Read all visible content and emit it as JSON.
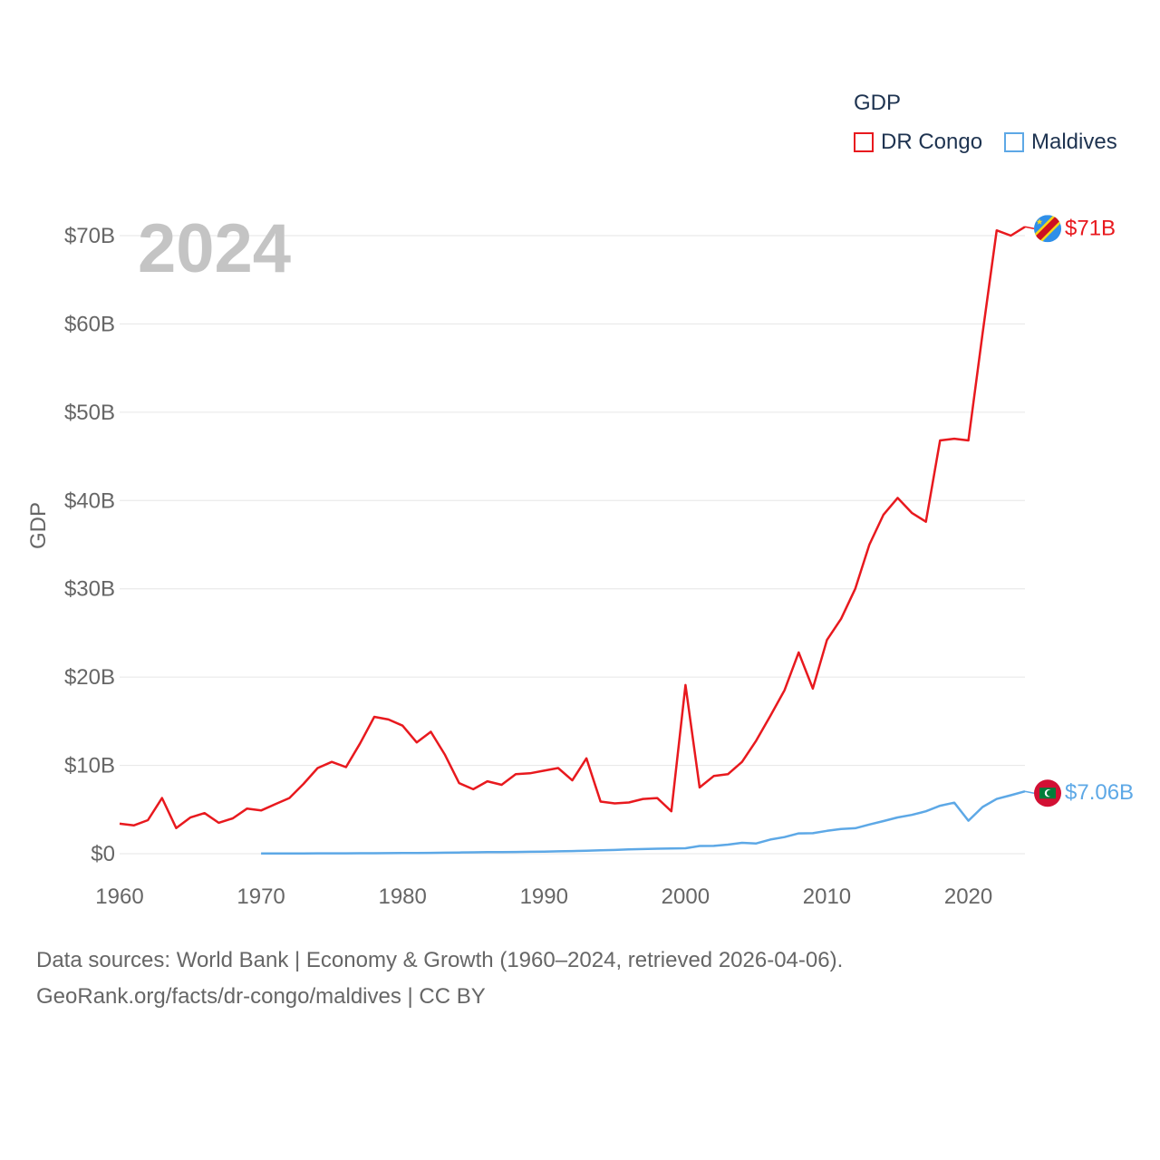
{
  "chart_data": {
    "type": "line",
    "big_year_label": "2024",
    "ylabel": "GDP",
    "xlabel": "",
    "xlim": [
      1960,
      2024
    ],
    "ylim": [
      0,
      70
    ],
    "y_unit": "billion USD",
    "y_ticks": [
      0,
      10,
      20,
      30,
      40,
      50,
      60,
      70
    ],
    "y_tick_labels": [
      "$0",
      "$10B",
      "$20B",
      "$30B",
      "$40B",
      "$50B",
      "$60B",
      "$70B"
    ],
    "x_ticks": [
      1960,
      1970,
      1980,
      1990,
      2000,
      2010,
      2020
    ],
    "x_tick_labels": [
      "1960",
      "1970",
      "1980",
      "1990",
      "2000",
      "2010",
      "2020"
    ],
    "grid": true,
    "legend": {
      "title": "GDP",
      "placement": "top-right"
    },
    "series": [
      {
        "name": "DR Congo",
        "color": "#e8191e",
        "flag_icon": "dr-congo-flag-icon",
        "end_label": "$71B",
        "x": [
          1960,
          1961,
          1962,
          1963,
          1964,
          1965,
          1966,
          1967,
          1968,
          1969,
          1970,
          1971,
          1972,
          1973,
          1974,
          1975,
          1976,
          1977,
          1978,
          1979,
          1980,
          1981,
          1982,
          1983,
          1984,
          1985,
          1986,
          1987,
          1988,
          1989,
          1990,
          1991,
          1992,
          1993,
          1994,
          1995,
          1996,
          1997,
          1998,
          1999,
          2000,
          2001,
          2002,
          2003,
          2004,
          2005,
          2006,
          2007,
          2008,
          2009,
          2010,
          2011,
          2012,
          2013,
          2014,
          2015,
          2016,
          2017,
          2018,
          2019,
          2020,
          2021,
          2022,
          2023,
          2024
        ],
        "values": [
          3.4,
          3.2,
          3.8,
          6.3,
          2.9,
          4.1,
          4.6,
          3.5,
          4.0,
          5.1,
          4.9,
          5.6,
          6.3,
          7.9,
          9.7,
          10.4,
          9.8,
          12.5,
          15.5,
          15.2,
          14.5,
          12.6,
          13.8,
          11.2,
          8.0,
          7.3,
          8.2,
          7.8,
          9.0,
          9.1,
          9.4,
          9.7,
          8.3,
          10.8,
          5.9,
          5.7,
          5.8,
          6.2,
          6.3,
          4.8,
          19.1,
          7.5,
          8.8,
          9.0,
          10.4,
          12.8,
          15.6,
          18.5,
          22.8,
          18.7,
          24.2,
          26.6,
          30.0,
          35.0,
          38.4,
          40.3,
          38.6,
          37.6,
          46.8,
          47.0,
          46.8,
          58.9,
          70.6,
          70.0,
          71.0
        ]
      },
      {
        "name": "Maldives",
        "color": "#5da8e6",
        "flag_icon": "maldives-flag-icon",
        "end_label": "$7.06B",
        "x": [
          1970,
          1971,
          1972,
          1973,
          1974,
          1975,
          1976,
          1977,
          1978,
          1979,
          1980,
          1981,
          1982,
          1983,
          1984,
          1985,
          1986,
          1987,
          1988,
          1989,
          1990,
          1991,
          1992,
          1993,
          1994,
          1995,
          1996,
          1997,
          1998,
          1999,
          2000,
          2001,
          2002,
          2003,
          2004,
          2005,
          2006,
          2007,
          2008,
          2009,
          2010,
          2011,
          2012,
          2013,
          2014,
          2015,
          2016,
          2017,
          2018,
          2019,
          2020,
          2021,
          2022,
          2023,
          2024
        ],
        "values": [
          0.02,
          0.02,
          0.02,
          0.03,
          0.04,
          0.04,
          0.04,
          0.05,
          0.05,
          0.06,
          0.07,
          0.08,
          0.09,
          0.11,
          0.13,
          0.15,
          0.17,
          0.18,
          0.2,
          0.22,
          0.24,
          0.27,
          0.3,
          0.34,
          0.38,
          0.42,
          0.48,
          0.52,
          0.56,
          0.59,
          0.62,
          0.87,
          0.88,
          1.03,
          1.23,
          1.16,
          1.6,
          1.88,
          2.3,
          2.32,
          2.59,
          2.8,
          2.88,
          3.3,
          3.7,
          4.11,
          4.39,
          4.8,
          5.43,
          5.78,
          3.74,
          5.29,
          6.2,
          6.62,
          7.06
        ]
      }
    ]
  },
  "source_line1": "Data sources: World Bank | Economy & Growth (1960–2024, retrieved 2026-04-06).",
  "source_line2": "GeoRank.org/facts/dr-congo/maldives | CC BY"
}
